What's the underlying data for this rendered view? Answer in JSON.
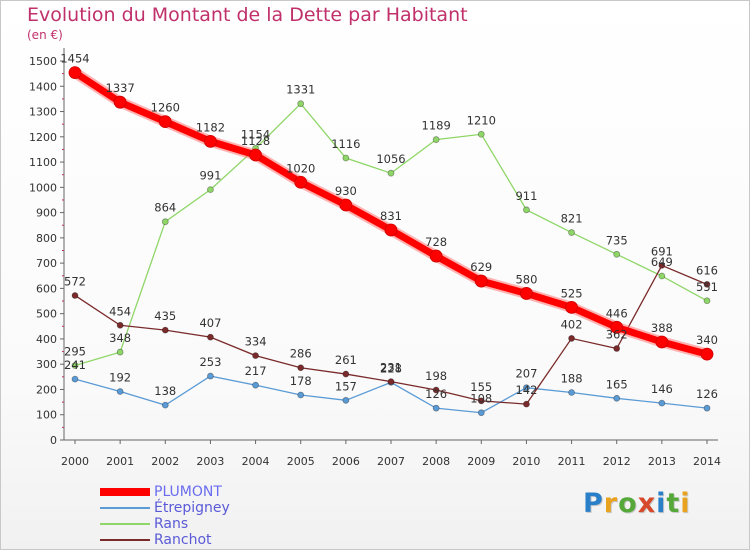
{
  "title": "Evolution du Montant de la Dette par Habitant",
  "unit_label": "(en €)",
  "logo": {
    "letters": [
      "P",
      "r",
      "o",
      "x",
      "i",
      "t",
      "i"
    ],
    "colors": [
      "#2a7fc9",
      "#e8a21d",
      "#56a83a",
      "#d6492b",
      "#2a7fc9",
      "#56a83a",
      "#e8a21d"
    ]
  },
  "chart_data": {
    "type": "line",
    "title": "Evolution du Montant de la Dette par Habitant",
    "ylabel": "(en €)",
    "xlabel": "",
    "x": [
      "2000",
      "2001",
      "2002",
      "2003",
      "2004",
      "2005",
      "2006",
      "2007",
      "2008",
      "2009",
      "2010",
      "2011",
      "2012",
      "2013",
      "2014"
    ],
    "y_ticks": [
      "0",
      "100",
      "200",
      "300",
      "400",
      "500",
      "600",
      "700",
      "800",
      "900",
      "1000",
      "1100",
      "1200",
      "1300",
      "1400",
      "1500"
    ],
    "ylim": [
      0,
      1500
    ],
    "grid": false,
    "legend_position": "bottom-left",
    "series": [
      {
        "name": "PLUMONT",
        "color": "#ff0000",
        "emphasis": true,
        "values": [
          1454,
          1337,
          1260,
          1182,
          1128,
          1020,
          930,
          831,
          728,
          629,
          580,
          525,
          446,
          388,
          340
        ],
        "labels": [
          "1454",
          "1337",
          "1260",
          "1182",
          "1128",
          "1020",
          "930",
          "831",
          "728",
          "629",
          "580",
          "525",
          "446",
          "388",
          "340"
        ]
      },
      {
        "name": "Étrepigney",
        "color": "#5b9bd5",
        "emphasis": false,
        "values": [
          241,
          192,
          138,
          253,
          217,
          178,
          157,
          228,
          126,
          108,
          207,
          188,
          165,
          146,
          126
        ],
        "labels": [
          "241",
          "192",
          "138",
          "253",
          "217",
          "178",
          "157",
          "228",
          "126",
          "108",
          "207",
          "188",
          "165",
          "146",
          "126"
        ]
      },
      {
        "name": "Rans",
        "color": "#8fd668",
        "emphasis": false,
        "values": [
          295,
          348,
          864,
          991,
          1154,
          1331,
          1116,
          1056,
          1189,
          1210,
          911,
          821,
          735,
          649,
          551
        ],
        "labels": [
          "295",
          "348",
          "864",
          "991",
          "1154",
          "1331",
          "1116",
          "1056",
          "1189",
          "1210",
          "911",
          "821",
          "735",
          "649",
          "551"
        ]
      },
      {
        "name": "Ranchot",
        "color": "#7a2a2a",
        "emphasis": false,
        "values": [
          572,
          454,
          435,
          407,
          334,
          286,
          261,
          231,
          198,
          155,
          142,
          402,
          362,
          691,
          616
        ],
        "labels": [
          "572",
          "454",
          "435",
          "407",
          "334",
          "286",
          "261",
          "231",
          "198",
          "155",
          "142",
          "402",
          "362",
          "691",
          "616"
        ]
      }
    ]
  }
}
